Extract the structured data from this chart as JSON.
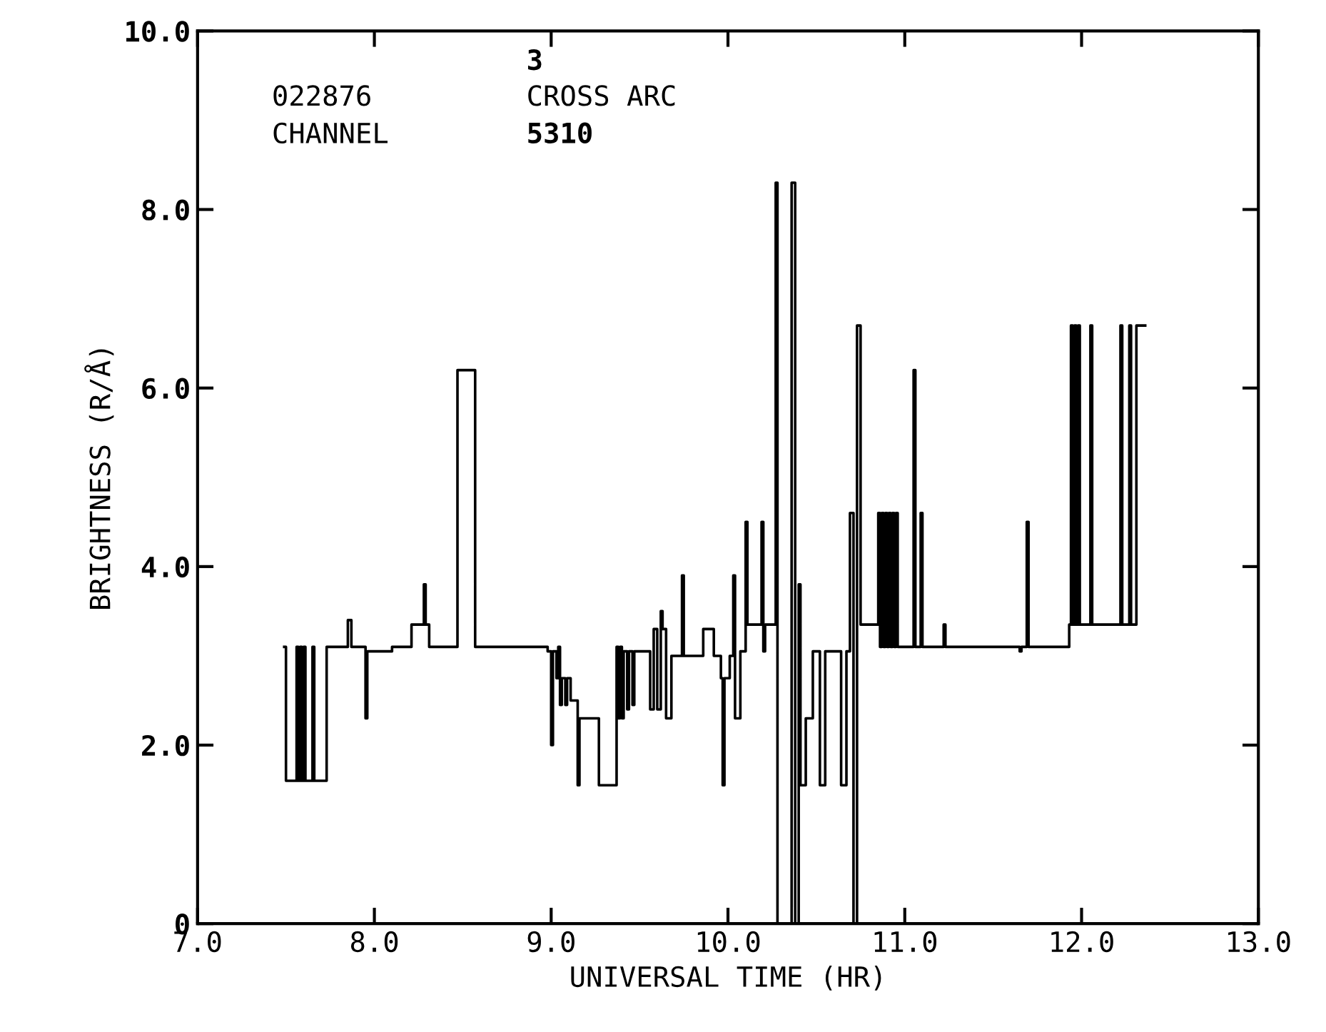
{
  "chart_data": {
    "type": "step",
    "xlabel": "UNIVERSAL TIME (HR)",
    "ylabel": "BRIGHTNESS (R/Å)",
    "annotations": [
      "3",
      "022876",
      "CROSS ARC",
      "CHANNEL",
      "5310"
    ],
    "xlim": [
      7.0,
      13.0
    ],
    "ylim": [
      0,
      10.0
    ],
    "xticks": [
      {
        "value": 7,
        "label": "7.0"
      },
      {
        "value": 8,
        "label": "8.0"
      },
      {
        "value": 9,
        "label": "9.0"
      },
      {
        "value": 10,
        "label": "10.0"
      },
      {
        "value": 11,
        "label": "11.0"
      },
      {
        "value": 12,
        "label": "12.0"
      },
      {
        "value": 13,
        "label": "13.0"
      }
    ],
    "yticks": [
      0,
      {
        "value": 2,
        "label": "2.0"
      },
      {
        "value": 4,
        "label": "4.0"
      },
      {
        "value": 6,
        "label": "6.0"
      },
      {
        "value": 8,
        "label": "8.0"
      },
      {
        "value": 10,
        "label": "10.0"
      }
    ],
    "grid": false,
    "legend": false,
    "series": [
      {
        "color": "#000000",
        "x": [
          7.49,
          7.5,
          7.56,
          7.57,
          7.58,
          7.59,
          7.6,
          7.61,
          7.65,
          7.66,
          7.73,
          7.85,
          7.87,
          7.95,
          7.96,
          8.1,
          8.21,
          8.28,
          8.29,
          8.31,
          8.47,
          8.57,
          8.98,
          9.0,
          9.01,
          9.03,
          9.04,
          9.05,
          9.06,
          9.08,
          9.09,
          9.11,
          9.15,
          9.16,
          9.27,
          9.37,
          9.38,
          9.39,
          9.4,
          9.41,
          9.43,
          9.44,
          9.46,
          9.47,
          9.56,
          9.58,
          9.6,
          9.62,
          9.63,
          9.65,
          9.68,
          9.74,
          9.75,
          9.86,
          9.92,
          9.96,
          9.97,
          9.98,
          10.01,
          10.03,
          10.04,
          10.07,
          10.1,
          10.11,
          10.19,
          10.2,
          10.21,
          10.27,
          10.28,
          10.36,
          10.38,
          10.4,
          10.41,
          10.44,
          10.48,
          10.52,
          10.55,
          10.64,
          10.67,
          10.69,
          10.71,
          10.73,
          10.75,
          10.85,
          10.86,
          10.87,
          10.88,
          10.89,
          10.9,
          10.91,
          10.92,
          10.93,
          10.94,
          10.95,
          10.96,
          10.98,
          11.05,
          11.06,
          11.09,
          11.1,
          11.22,
          11.23,
          11.65,
          11.66,
          11.69,
          11.7,
          11.93,
          11.94,
          11.95,
          11.96,
          11.97,
          11.98,
          11.99,
          12.05,
          12.06,
          12.22,
          12.23,
          12.27,
          12.28,
          12.31,
          12.36
        ],
        "values": [
          3.1,
          1.6,
          3.1,
          1.6,
          3.1,
          1.6,
          3.1,
          1.6,
          3.1,
          1.6,
          3.1,
          3.4,
          3.1,
          2.3,
          3.05,
          3.1,
          3.35,
          3.8,
          3.35,
          3.1,
          6.2,
          3.1,
          3.05,
          2.0,
          3.05,
          2.75,
          3.1,
          2.45,
          2.75,
          2.45,
          2.75,
          2.5,
          1.55,
          2.3,
          1.55,
          3.1,
          2.3,
          3.1,
          2.3,
          3.05,
          2.4,
          3.05,
          2.45,
          3.05,
          2.4,
          3.3,
          2.4,
          3.5,
          3.3,
          2.3,
          3.0,
          3.9,
          3.0,
          3.3,
          3.0,
          2.75,
          1.55,
          2.75,
          3.0,
          3.9,
          2.3,
          3.05,
          4.5,
          3.35,
          4.5,
          3.05,
          3.35,
          8.3,
          0,
          8.3,
          0,
          3.8,
          1.55,
          2.3,
          3.05,
          1.55,
          3.05,
          1.55,
          3.05,
          4.6,
          0,
          6.7,
          3.35,
          4.6,
          3.1,
          4.6,
          3.1,
          4.6,
          3.1,
          4.6,
          3.1,
          4.6,
          3.1,
          4.6,
          3.1,
          3.1,
          6.2,
          3.1,
          4.6,
          3.1,
          3.35,
          3.1,
          3.05,
          3.1,
          4.5,
          3.1,
          3.35,
          6.7,
          3.35,
          6.7,
          3.35,
          6.7,
          3.35,
          6.7,
          3.35,
          6.7,
          3.35,
          6.7,
          3.35,
          6.7,
          6.7
        ]
      }
    ]
  }
}
